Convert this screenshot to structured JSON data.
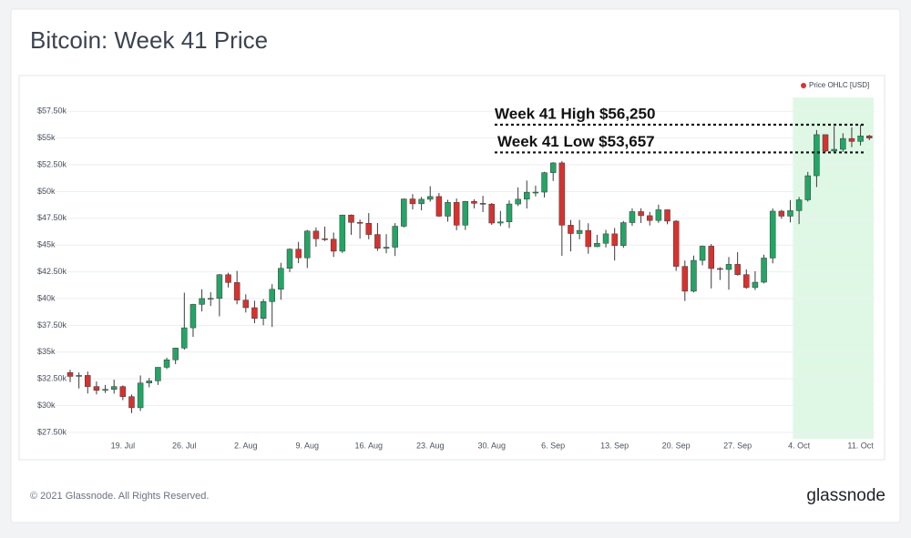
{
  "chart_data": {
    "type": "candlestick",
    "title": "Bitcoin: Week 41 Price",
    "categories": [
      null,
      null,
      null,
      null,
      null,
      null,
      "19. Jul",
      null,
      null,
      null,
      null,
      null,
      null,
      "26. Jul",
      null,
      null,
      null,
      null,
      null,
      null,
      "2. Aug",
      null,
      null,
      null,
      null,
      null,
      null,
      "9. Aug",
      null,
      null,
      null,
      null,
      null,
      null,
      "16. Aug",
      null,
      null,
      null,
      null,
      null,
      null,
      "23. Aug",
      null,
      null,
      null,
      null,
      null,
      null,
      "30. Aug",
      null,
      null,
      null,
      null,
      null,
      null,
      "6. Sep",
      null,
      null,
      null,
      null,
      null,
      null,
      "13. Sep",
      null,
      null,
      null,
      null,
      null,
      null,
      "20. Sep",
      null,
      null,
      null,
      null,
      null,
      null,
      "27. Sep",
      null,
      null,
      null,
      null,
      null,
      null,
      "4. Oct",
      null,
      null,
      null,
      null,
      null,
      null,
      "11. Oct",
      null
    ],
    "series": [
      {
        "name": "Price OHLC [USD]",
        "color": "#e0302f",
        "up_color": "#23a565",
        "down_color": "#d9312e",
        "open": [
          33090,
          32730,
          32820,
          31780,
          31420,
          31520,
          31780,
          30840,
          29800,
          32110,
          32310,
          33580,
          34280,
          35380,
          37270,
          39460,
          40010,
          40020,
          42230,
          41500,
          39860,
          39150,
          38150,
          39720,
          40870,
          42830,
          44620,
          43810,
          46310,
          45590,
          45550,
          44430,
          47810,
          47120,
          47040,
          45990,
          44700,
          44800,
          46760,
          49310,
          48860,
          49280,
          49540,
          47700,
          48990,
          46860,
          49080,
          48900,
          48830,
          47060,
          47170,
          48840,
          49290,
          49940,
          49950,
          51770,
          52680,
          46860,
          46080,
          46370,
          44850,
          45170,
          46050,
          44960,
          47100,
          48130,
          47750,
          47300,
          48300,
          47240,
          43010,
          40690,
          43570,
          44900,
          42810,
          42720,
          43200,
          42240,
          41030,
          41530,
          43790,
          48170,
          47700,
          48220,
          49230,
          51480,
          55320,
          53790,
          53950,
          54960,
          54690,
          55200
        ],
        "high": [
          33340,
          33100,
          33180,
          32250,
          31930,
          32420,
          31890,
          31040,
          32820,
          32590,
          33590,
          34480,
          35390,
          40550,
          39510,
          40870,
          40590,
          42300,
          42410,
          42590,
          40400,
          39800,
          39950,
          41340,
          43340,
          44690,
          45300,
          46420,
          46650,
          46730,
          46170,
          47840,
          47860,
          47380,
          47990,
          47060,
          46020,
          47050,
          49350,
          49760,
          49500,
          50500,
          49870,
          49230,
          49350,
          49130,
          49280,
          49610,
          48930,
          48190,
          49180,
          50390,
          51030,
          50560,
          51850,
          52750,
          52860,
          47340,
          47350,
          47040,
          45960,
          46420,
          46600,
          47250,
          48430,
          48440,
          48100,
          48780,
          48330,
          47320,
          43560,
          44020,
          44960,
          45100,
          42950,
          43880,
          44340,
          42740,
          42560,
          44100,
          48420,
          48300,
          49210,
          49490,
          51840,
          55750,
          55330,
          56110,
          55450,
          56000,
          56250,
          55300
        ],
        "low": [
          32200,
          31600,
          31130,
          31050,
          31180,
          31110,
          30510,
          29300,
          29500,
          31710,
          31930,
          33420,
          33880,
          35230,
          36420,
          38800,
          39310,
          38340,
          41040,
          39470,
          38700,
          37700,
          37510,
          37350,
          39890,
          42480,
          43310,
          42850,
          44850,
          45380,
          43890,
          44260,
          45960,
          45600,
          45540,
          44460,
          44230,
          43980,
          46650,
          48330,
          48250,
          49060,
          47640,
          47190,
          46390,
          46410,
          48430,
          48080,
          46890,
          46780,
          46590,
          48650,
          48420,
          49550,
          49450,
          50990,
          44000,
          44410,
          45540,
          44190,
          44820,
          44780,
          43560,
          44740,
          46800,
          47060,
          46830,
          47070,
          46950,
          42590,
          39780,
          40580,
          43110,
          40950,
          41740,
          40830,
          42150,
          40920,
          40800,
          41420,
          43290,
          47460,
          47120,
          46960,
          49060,
          50420,
          53700,
          53657,
          53700,
          54150,
          54300,
          54800
        ],
        "close": [
          32730,
          32820,
          31780,
          31420,
          31520,
          31780,
          30840,
          29800,
          32110,
          32310,
          33580,
          34280,
          35380,
          37270,
          39460,
          40010,
          40020,
          42230,
          41500,
          39860,
          39150,
          38150,
          39720,
          40870,
          42830,
          44620,
          43810,
          46310,
          45590,
          45550,
          44430,
          47810,
          47120,
          47040,
          45990,
          44700,
          44800,
          46760,
          49310,
          48860,
          49280,
          49540,
          47700,
          48990,
          46860,
          49080,
          48900,
          48830,
          47060,
          47170,
          48840,
          49290,
          49940,
          49950,
          51770,
          52680,
          46860,
          46080,
          46370,
          44850,
          45170,
          46050,
          44960,
          47100,
          48130,
          47750,
          47300,
          48300,
          47240,
          43010,
          40690,
          43570,
          44900,
          42810,
          42720,
          43200,
          42240,
          41030,
          41530,
          43790,
          48170,
          47700,
          48220,
          49230,
          51480,
          55320,
          53790,
          53950,
          54960,
          54690,
          55200,
          55000
        ]
      }
    ],
    "ylim": [
      26900,
      58800
    ],
    "yticks": [
      {
        "value": 27500,
        "label": "$27.50k"
      },
      {
        "value": 30000,
        "label": "$30k"
      },
      {
        "value": 32500,
        "label": "$32.50k"
      },
      {
        "value": 35000,
        "label": "$35k"
      },
      {
        "value": 37500,
        "label": "$37.50k"
      },
      {
        "value": 40000,
        "label": "$40k"
      },
      {
        "value": 42500,
        "label": "$42.50k"
      },
      {
        "value": 45000,
        "label": "$45k"
      },
      {
        "value": 47500,
        "label": "$47.50k"
      },
      {
        "value": 50000,
        "label": "$50k"
      },
      {
        "value": 52500,
        "label": "$52.50k"
      },
      {
        "value": 55000,
        "label": "$55k"
      },
      {
        "value": 57500,
        "label": "$57.50k"
      }
    ],
    "grid": true,
    "legend": "top-right",
    "highlight": {
      "from": 83,
      "to": 91,
      "color": "#dff8e6"
    },
    "annotations": [
      {
        "label": "Week 41 High $56,250",
        "value": 56250
      },
      {
        "label": "Week 41 Low $53,657",
        "value": 53657
      }
    ]
  },
  "footer": {
    "copyright": "© 2021 Glassnode. All Rights Reserved.",
    "brand": "glassnode"
  }
}
